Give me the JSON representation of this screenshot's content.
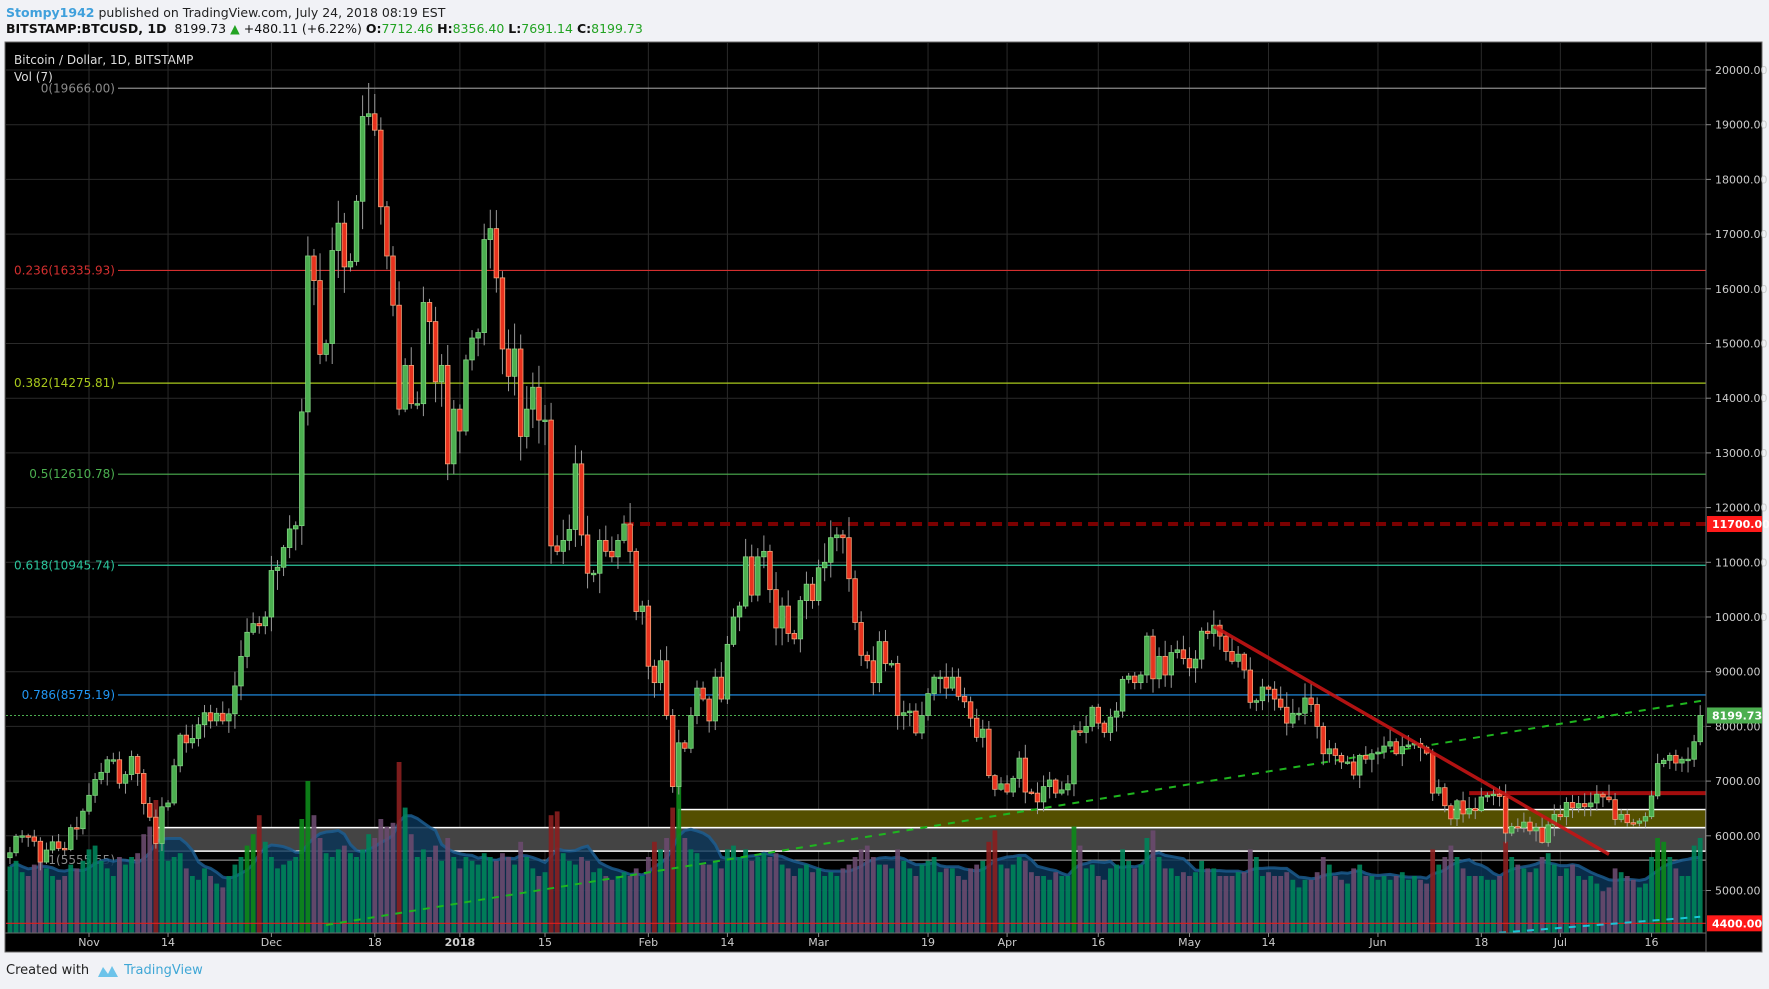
{
  "header": {
    "user": "Stompy1942",
    "published": "published on TradingView.com, July 24, 2018 08:19 EST",
    "symbol": "BITSTAMP:BTCUSD, 1D",
    "last": "8199.73",
    "change": "+480.11 (+6.22%)",
    "o_label": "O:",
    "o": "7712.46",
    "h_label": "H:",
    "h": "8356.40",
    "l_label": "L:",
    "l": "7691.14",
    "c_label": "C:",
    "c": "8199.73"
  },
  "footer": {
    "created_with": "Created with",
    "brand": "TradingView"
  },
  "colors": {
    "up": "#4caf50",
    "down": "#e8321e",
    "down_border": "#f6a57a",
    "fib0": "#8a8a8a",
    "fib236": "#d32f2f",
    "fib382": "#a8c81c",
    "fib5": "#4caf50",
    "fib618": "#2bc49c",
    "fib786": "#2196f3",
    "fib1": "#8a8a8a"
  },
  "chart_data": {
    "type": "candlestick",
    "title": "Bitcoin / Dollar, 1D, BITSTAMP",
    "volume_label": "Vol (7)",
    "start_date": "2017-10-19",
    "first_open": 5600,
    "close": [
      5690,
      5990,
      6000,
      5980,
      5900,
      5520,
      5740,
      5890,
      5770,
      5750,
      6150,
      6130,
      6450,
      6740,
      7030,
      7160,
      7390,
      7390,
      6960,
      7120,
      7450,
      7140,
      6590,
      6340,
      5860,
      6530,
      6600,
      7280,
      7840,
      7700,
      7780,
      8030,
      8250,
      8100,
      8240,
      8100,
      8230,
      8740,
      9280,
      9720,
      9880,
      9840,
      10000,
      10850,
      10910,
      11270,
      11610,
      11670,
      13750,
      16600,
      16150,
      14800,
      15000,
      16700,
      17200,
      16400,
      16500,
      17600,
      19150,
      19200,
      18900,
      17500,
      16600,
      15700,
      13800,
      14600,
      13900,
      13900,
      15750,
      15400,
      14300,
      14600,
      12800,
      13800,
      13400,
      14700,
      15100,
      15200,
      16900,
      17100,
      16200,
      14900,
      14400,
      14900,
      13300,
      13800,
      14200,
      13600,
      13600,
      11300,
      11200,
      11400,
      11600,
      12800,
      11500,
      10800,
      10800,
      11400,
      11200,
      11100,
      11400,
      11700,
      11200,
      10100,
      10200,
      9100,
      8800,
      9200,
      8200,
      6900,
      7700,
      7600,
      8200,
      8700,
      8500,
      8100,
      8900,
      8500,
      9500,
      10000,
      10200,
      11100,
      10400,
      11100,
      11200,
      10500,
      9800,
      10200,
      9700,
      9600,
      10300,
      10600,
      10300,
      10900,
      11000,
      11450,
      11500,
      11450,
      10700,
      9900,
      9300,
      9200,
      8800,
      9550,
      9150,
      9150,
      8200,
      8250,
      8280,
      7880,
      8200,
      8600,
      8900,
      8900,
      8700,
      8900,
      8550,
      8450,
      8150,
      7800,
      7950,
      7100,
      6850,
      6950,
      6800,
      7050,
      7420,
      6800,
      6780,
      6620,
      6900,
      7020,
      6780,
      6840,
      6950,
      7920,
      7890,
      8000,
      8350,
      8060,
      7890,
      8170,
      8280,
      8860,
      8920,
      8800,
      8940,
      9650,
      8870,
      9280,
      8940,
      9350,
      9400,
      9240,
      9070,
      9230,
      9740,
      9700,
      9850,
      9650,
      9370,
      9190,
      9320,
      9030,
      8440,
      8470,
      8720,
      8680,
      8500,
      8350,
      8060,
      8240,
      8240,
      8520,
      8400,
      8000,
      7500,
      7590,
      7470,
      7350,
      7350,
      7110,
      7470,
      7400,
      7500,
      7530,
      7640,
      7720,
      7500,
      7630,
      7660,
      7690,
      7620,
      7510,
      6780,
      6880,
      6550,
      6310,
      6640,
      6400,
      6500,
      6460,
      6710,
      6740,
      6760,
      6720,
      6050,
      6170,
      6150,
      6250,
      6090,
      6150,
      5880,
      6200,
      6390,
      6350,
      6610,
      6510,
      6590,
      6530,
      6600,
      6760,
      6710,
      6660,
      6300,
      6390,
      6240,
      6230,
      6270,
      6350,
      6730,
      7320,
      7380,
      7470,
      7330,
      7400,
      7400,
      7720,
      8199.73
    ],
    "volume_relative": [
      35,
      38,
      32,
      30,
      36,
      40,
      34,
      30,
      28,
      30,
      36,
      34,
      38,
      44,
      46,
      38,
      34,
      30,
      40,
      36,
      40,
      42,
      52,
      56,
      70,
      50,
      38,
      40,
      42,
      34,
      30,
      28,
      34,
      30,
      26,
      24,
      30,
      36,
      40,
      46,
      52,
      62,
      48,
      40,
      34,
      36,
      38,
      40,
      60,
      80,
      62,
      50,
      42,
      40,
      44,
      46,
      42,
      40,
      44,
      52,
      50,
      60,
      56,
      58,
      90,
      66,
      52,
      40,
      44,
      40,
      46,
      38,
      50,
      40,
      34,
      40,
      38,
      36,
      42,
      40,
      38,
      42,
      40,
      36,
      48,
      40,
      34,
      30,
      32,
      62,
      64,
      42,
      38,
      36,
      40,
      38,
      32,
      34,
      30,
      28,
      30,
      32,
      30,
      34,
      30,
      40,
      48,
      44,
      50,
      66,
      80,
      50,
      44,
      42,
      36,
      36,
      38,
      34,
      44,
      46,
      40,
      44,
      38,
      40,
      42,
      40,
      42,
      36,
      34,
      30,
      34,
      36,
      32,
      34,
      30,
      32,
      30,
      34,
      36,
      40,
      44,
      46,
      40,
      36,
      36,
      34,
      44,
      38,
      34,
      30,
      36,
      38,
      40,
      32,
      34,
      34,
      30,
      28,
      34,
      36,
      38,
      48,
      54,
      36,
      34,
      36,
      40,
      38,
      32,
      30,
      30,
      28,
      32,
      30,
      30,
      56,
      46,
      34,
      36,
      30,
      28,
      34,
      36,
      44,
      38,
      34,
      36,
      50,
      54,
      40,
      34,
      34,
      30,
      32,
      30,
      32,
      38,
      34,
      34,
      30,
      30,
      30,
      32,
      32,
      44,
      40,
      30,
      32,
      30,
      30,
      32,
      28,
      24,
      28,
      28,
      32,
      40,
      36,
      30,
      28,
      26,
      34,
      36,
      30,
      30,
      28,
      30,
      28,
      30,
      32,
      28,
      30,
      28,
      26,
      44,
      36,
      40,
      46,
      40,
      34,
      30,
      30,
      30,
      28,
      28,
      30,
      48,
      40,
      36,
      34,
      32,
      34,
      40,
      42,
      36,
      30,
      34,
      36,
      30,
      28,
      30,
      26,
      22,
      24,
      34,
      32,
      30,
      28,
      24,
      26,
      40,
      50,
      48,
      40,
      34,
      30,
      30,
      46,
      50
    ],
    "volume_ma_period": 7,
    "y_ticks": [
      "20000.00",
      "19000.00",
      "18000.00",
      "17000.00",
      "16000.00",
      "15000.00",
      "14000.00",
      "13000.00",
      "12000.00",
      "11000.00",
      "10000.00",
      "9000.00",
      "8000.00",
      "7000.00",
      "6000.00",
      "5000.00"
    ],
    "ylim": [
      4000,
      20300
    ],
    "x_ticks": [
      {
        "label": "Nov",
        "date": "2017-11-01"
      },
      {
        "label": "14",
        "date": "2017-11-14"
      },
      {
        "label": "Dec",
        "date": "2017-12-01"
      },
      {
        "label": "18",
        "date": "2017-12-18"
      },
      {
        "label": "2018",
        "date": "2018-01-01"
      },
      {
        "label": "15",
        "date": "2018-01-15"
      },
      {
        "label": "Feb",
        "date": "2018-02-01"
      },
      {
        "label": "14",
        "date": "2018-02-14"
      },
      {
        "label": "Mar",
        "date": "2018-03-01"
      },
      {
        "label": "19",
        "date": "2018-03-19"
      },
      {
        "label": "Apr",
        "date": "2018-04-01"
      },
      {
        "label": "16",
        "date": "2018-04-16"
      },
      {
        "label": "May",
        "date": "2018-05-01"
      },
      {
        "label": "14",
        "date": "2018-05-14"
      },
      {
        "label": "Jun",
        "date": "2018-06-01"
      },
      {
        "label": "18",
        "date": "2018-06-18"
      },
      {
        "label": "Jul",
        "date": "2018-07-01"
      },
      {
        "label": "16",
        "date": "2018-07-16"
      }
    ],
    "fib_levels": [
      {
        "label": "0(19666.00)",
        "price": 19666,
        "color": "#8a8a8a"
      },
      {
        "label": "0.236(16335.93)",
        "price": 16335.93,
        "color": "#d32f2f"
      },
      {
        "label": "0.382(14275.81)",
        "price": 14275.81,
        "color": "#a8c81c"
      },
      {
        "label": "0.5(12610.78)",
        "price": 12610.78,
        "color": "#4caf50"
      },
      {
        "label": "0.618(10945.74)",
        "price": 10945.74,
        "color": "#2bc49c"
      },
      {
        "label": "0.786(8575.19)",
        "price": 8575.19,
        "color": "#2196f3"
      },
      {
        "label": "1(5555.55)",
        "price": 5555.55,
        "color": "#8a8a8a"
      }
    ],
    "price_tags": [
      {
        "label": "11700.00",
        "price": 11700,
        "color": "#ff1a1a"
      },
      {
        "label": "8199.73",
        "price": 8199.73,
        "color": "#4caf50"
      },
      {
        "label": "4400.00",
        "price": 4400,
        "color": "#ff1a1a"
      }
    ],
    "annotations": {
      "resistance_dashed": {
        "price": 11700,
        "from": "2018-01-28"
      },
      "last_price_line": {
        "price": 8199.73
      },
      "volume_line": {
        "price": 4400
      },
      "support_zone_upper": {
        "from": "2018-02-06",
        "top": 6480,
        "bottom": 6150
      },
      "support_zone_lower": {
        "from": "2017-11-12",
        "top": 6150,
        "bottom": 5720
      },
      "horizontal_resistance": {
        "from": "2018-06-16",
        "price": 6780
      },
      "down_trendline": {
        "from": {
          "date": "2018-05-05",
          "price": 9830
        },
        "to": {
          "date": "2018-07-09",
          "price": 5660
        }
      },
      "up_trendline_dashed": {
        "from": {
          "date": "2017-12-10",
          "price": 4370
        },
        "to": {
          "date": "2018-07-26",
          "price": 8500
        }
      },
      "volume_trendline_dashed": {
        "from": {
          "date": "2018-05-06",
          "price": 3820
        },
        "to": {
          "date": "2018-07-24",
          "price": 4520
        }
      }
    }
  }
}
